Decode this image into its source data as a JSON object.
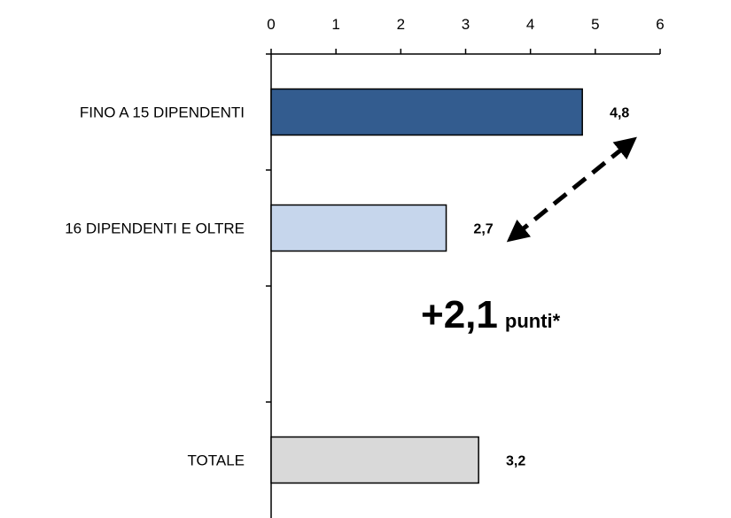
{
  "chart_data": {
    "type": "bar",
    "orientation": "horizontal",
    "categories": [
      "FINO A 15 DIPENDENTI",
      "16 DIPENDENTI E OLTRE",
      "TOTALE"
    ],
    "values": [
      4.8,
      2.7,
      3.2
    ],
    "value_labels": [
      "4,8",
      "2,7",
      "3,2"
    ],
    "colors": [
      "#335c8f",
      "#c6d6ec",
      "#d9d9d9"
    ],
    "xlim": [
      0,
      6
    ],
    "x_ticks": [
      "0",
      "1",
      "2",
      "3",
      "4",
      "5",
      "6"
    ],
    "x_axis_position": "top",
    "grid": false,
    "annotation": {
      "value": "+2,1",
      "unit": "punti*"
    }
  }
}
